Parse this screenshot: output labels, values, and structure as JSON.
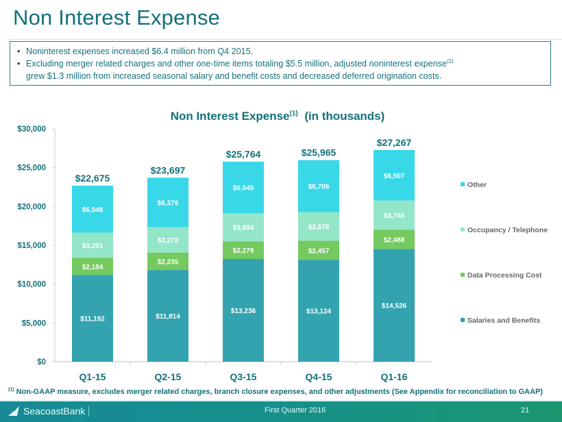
{
  "page": {
    "title": "Non Interest Expense",
    "bullets": [
      {
        "text": "Noninterest expenses increased $6.4 million from Q4 2015.",
        "sup": ""
      },
      {
        "text": "Excluding merger related charges and other one-time items totaling $5.5 million, adjusted noninterest expense",
        "sup": "(1)",
        "continuation": "grew $1.3 million from increased seasonal salary and benefit costs and decreased deferred origination costs."
      }
    ],
    "bullet_glyph": "•",
    "footnote_marker": "(1)",
    "footnote": "Non-GAAP measure, excludes merger related charges, branch closure expenses, and other adjustments (See Appendix for reconciliation to GAAP)"
  },
  "footer": {
    "brand": "SeacoastBank",
    "brand_icon": "sail-logo-icon",
    "quarter": "First Quarter 2016",
    "page_number": "21"
  },
  "chart_data": {
    "type": "bar",
    "stacked": true,
    "title": "Non Interest Expense",
    "title_sup": "(1)",
    "title_suffix": "(in thousands)",
    "xlabel": "",
    "ylabel": "",
    "ylim": [
      0,
      30000
    ],
    "yticks": [
      0,
      5000,
      10000,
      15000,
      20000,
      25000,
      30000
    ],
    "ytick_labels": [
      "$0",
      "$5,000",
      "$10,000",
      "$15,000",
      "$20,000",
      "$25,000",
      "$30,000"
    ],
    "grid": false,
    "legend_position": "right",
    "categories": [
      "Q1-15",
      "Q2-15",
      "Q3-15",
      "Q4-15",
      "Q1-16"
    ],
    "series": [
      {
        "name": "Salaries and Benefits",
        "color": "#33a3b0",
        "values": [
          11192,
          11814,
          13236,
          13124,
          14526
        ],
        "labels": [
          "$11,192",
          "$11,814",
          "$13,236",
          "$13,124",
          "$14,526"
        ]
      },
      {
        "name": "Data Processing Cost",
        "color": "#74c95f",
        "values": [
          2184,
          2235,
          2279,
          2457,
          2488
        ],
        "labels": [
          "$2,184",
          "$2,235",
          "$2,279",
          "$2,457",
          "$2,488"
        ]
      },
      {
        "name": "Occupancy / Telephone",
        "color": "#94e6c8",
        "values": [
          3251,
          3272,
          3604,
          3678,
          3746
        ],
        "labels": [
          "$3,251",
          "$3,272",
          "$3,604",
          "$3,678",
          "$3,746"
        ]
      },
      {
        "name": "Other",
        "color": "#38d8e8",
        "values": [
          6048,
          6376,
          6645,
          6706,
          6507
        ],
        "labels": [
          "$6,048",
          "$6,376",
          "$6,645",
          "$6,706",
          "$6,507"
        ]
      }
    ],
    "totals": [
      22675,
      23697,
      25764,
      25965,
      27267
    ],
    "total_labels": [
      "$22,675",
      "$23,697",
      "$25,764",
      "$25,965",
      "$27,267"
    ],
    "legend_order": [
      "Other",
      "Occupancy / Telephone",
      "Data Processing Cost",
      "Salaries and Benefits"
    ]
  }
}
